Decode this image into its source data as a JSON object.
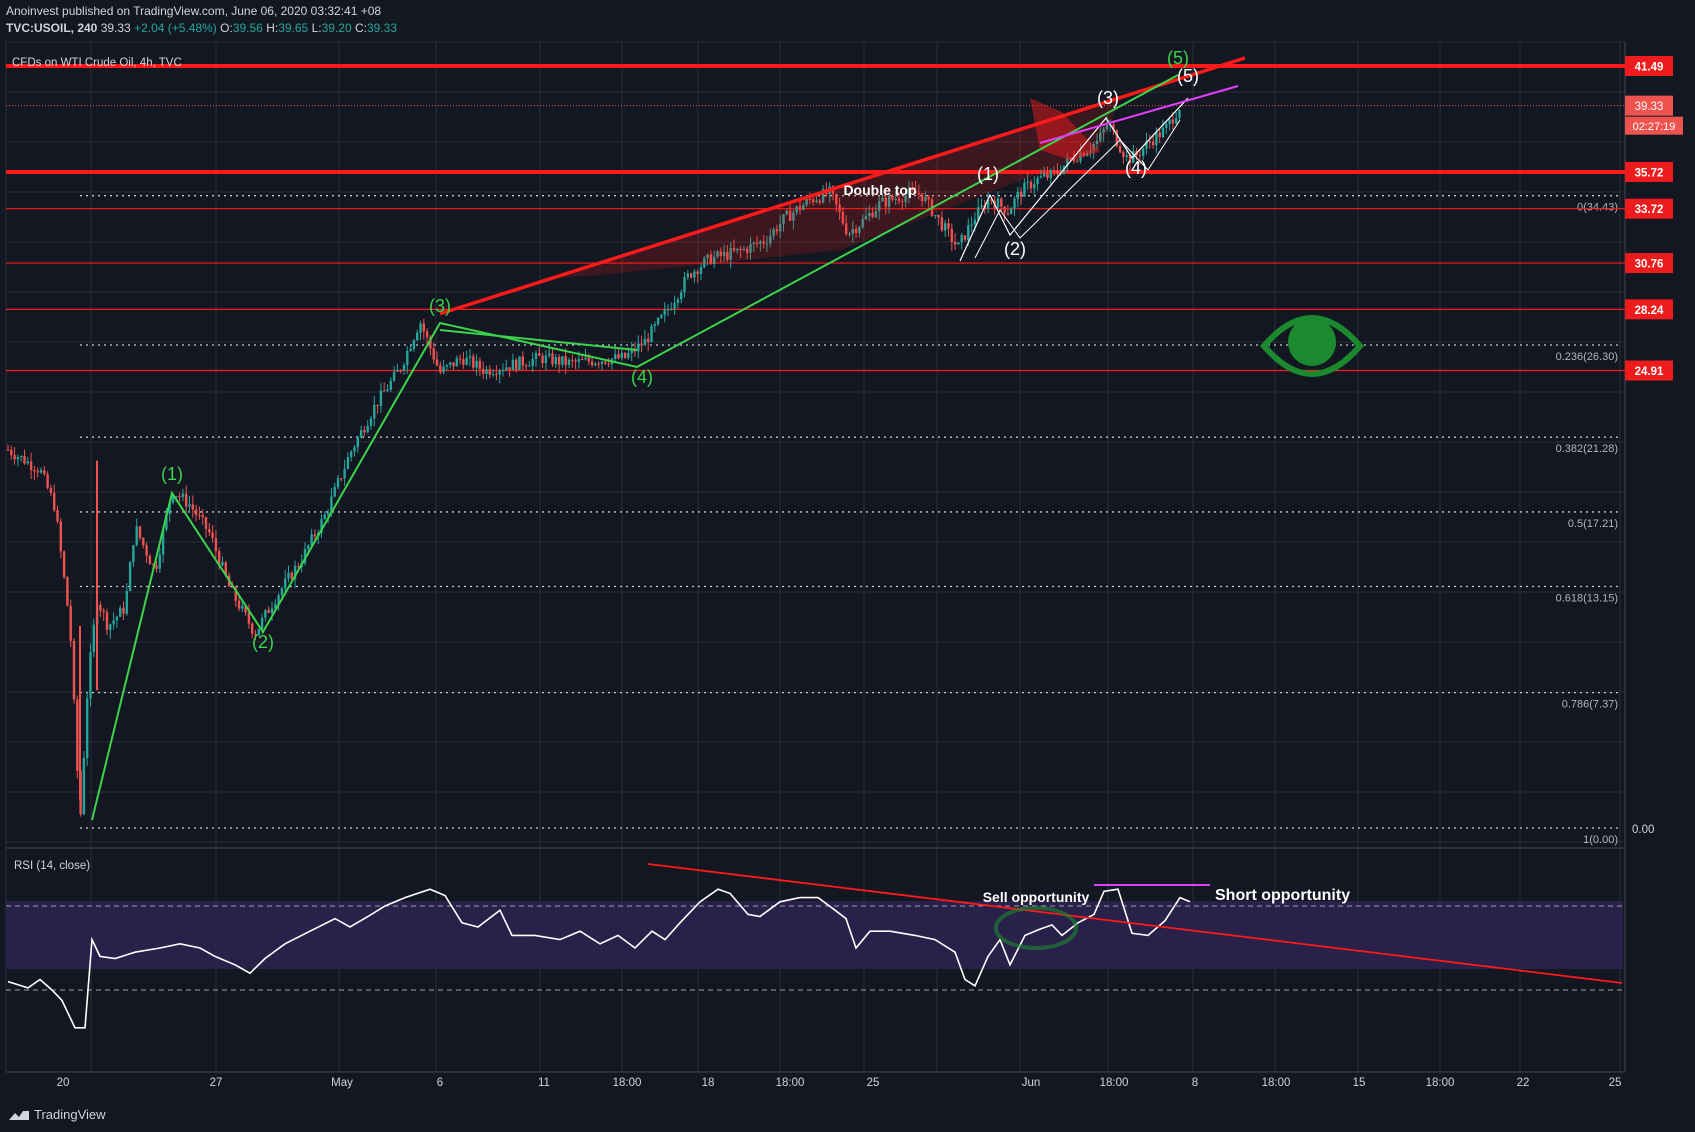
{
  "header": {
    "publisher_line": "Anoinvest published on TradingView.com, June 06, 2020 03:32:41 +08",
    "symbol": "TVC:USOIL, 240",
    "last": "39.33",
    "change": "+2.04 (+5.48%)",
    "o_label": "O:",
    "o": "39.56",
    "h_label": "H:",
    "h": "39.65",
    "l_label": "L:",
    "l": "39.20",
    "c_label": "C:",
    "c": "39.33",
    "chart_title": "CFDs on WTI Crude Oil, 4h, TVC"
  },
  "rsi_label": "RSI (14, close)",
  "footer_brand": "TradingView",
  "colors": {
    "background": "#131722",
    "grid": "#2a2e39",
    "up_candle": "#26a69a",
    "down_candle": "#ef5350",
    "resistance": "#ff1a1a",
    "wave_green": "#3bd44a",
    "wave_white": "#ffffff",
    "magenta": "#e040fb",
    "rsi_band": "#2e2350",
    "eye": "#1b8a2e"
  },
  "chart_data": {
    "type": "candlestick",
    "title": "CFDs on WTI Crude Oil, 4h, TVC",
    "x_ticks": [
      "20",
      "27",
      "May",
      "6",
      "11",
      "18:00",
      "18",
      "18:00",
      "25",
      "Jun",
      "18:00",
      "8",
      "18:00",
      "15",
      "18:00",
      "22",
      "25"
    ],
    "y_range": [
      0,
      45
    ],
    "horizontal_levels": [
      {
        "price": "41.49",
        "weight": "thick"
      },
      {
        "price": "35.72",
        "weight": "thick"
      },
      {
        "price": "33.72",
        "weight": "thin"
      },
      {
        "price": "30.76",
        "weight": "thin"
      },
      {
        "price": "28.24",
        "weight": "thin"
      },
      {
        "price": "24.91",
        "weight": "thin"
      }
    ],
    "current_price": "39.33",
    "countdown": "02:27:19",
    "axis_label_zero": "0.00",
    "fibonacci": [
      {
        "label": "0(34.43)",
        "value": 34.43
      },
      {
        "label": "0.236(26.30)",
        "value": 26.3
      },
      {
        "label": "0.382(21.28)",
        "value": 21.28
      },
      {
        "label": "0.5(17.21)",
        "value": 17.21
      },
      {
        "label": "0.618(13.15)",
        "value": 13.15
      },
      {
        "label": "0.786(7.37)",
        "value": 7.37
      },
      {
        "label": "1(0.00)",
        "value": 0.0
      }
    ],
    "green_wave_labels": [
      "(1)",
      "(2)",
      "(3)",
      "(4)",
      "(5)"
    ],
    "white_wave_labels": [
      "(1)",
      "(2)",
      "(3)",
      "(4)",
      "(5)"
    ],
    "annotations": [
      "Double top",
      "Sell opportunity",
      "Short opportunity"
    ],
    "rsi": {
      "period": 14,
      "source": "close",
      "upper": 70,
      "lower": 30
    }
  }
}
